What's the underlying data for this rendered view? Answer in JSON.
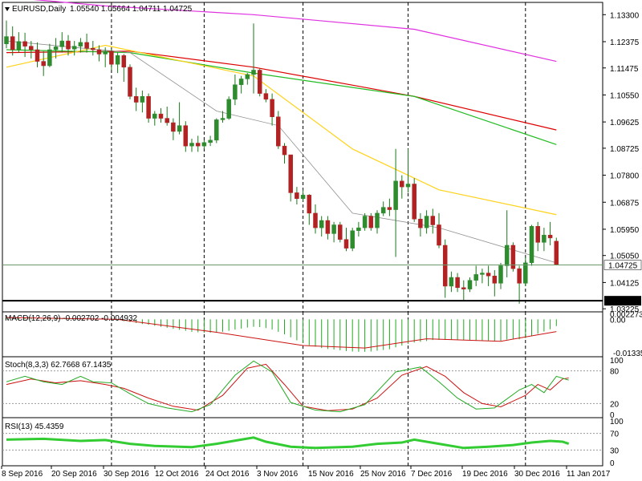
{
  "header": {
    "symbol_timeframe": "EURUSD,Daily",
    "ohlc": "1.05540 1.05664 1.04711 1.04725"
  },
  "colors": {
    "bull": "#2e8b2e",
    "bear": "#b22222",
    "wick": "#1a7a1a",
    "ma_magenta": "#e030e0",
    "ma_red": "#dd0000",
    "ma_green": "#22bb22",
    "ma_yellow": "#ffd21a",
    "ma_gray": "#909090",
    "macd_hist": "#22aa22",
    "macd_signal": "#cc1111",
    "stoch_main": "#22aa22",
    "stoch_signal": "#cc1111",
    "rsi": "#33cc33",
    "price_label_bg": "#000000",
    "price_label_text": "#ffffff"
  },
  "chart_data": [
    {
      "type": "candlestick",
      "title": "EURUSD,Daily",
      "ohlc_text": "1.05540 1.05664 1.04711 1.04725",
      "ylim": [
        1.0312,
        1.1372
      ],
      "y_ticks": [
        "1.13300",
        "1.12375",
        "1.11475",
        "1.10550",
        "1.09625",
        "1.08725",
        "1.07800",
        "1.06875",
        "1.05950",
        "1.05050",
        "1.04125",
        "1.03225"
      ],
      "x_ticks": [
        "8 Sep 2016",
        "20 Sep 2016",
        "30 Sep 2016",
        "12 Oct 2016",
        "24 Oct 2016",
        "3 Nov 2016",
        "15 Nov 2016",
        "25 Nov 2016",
        "7 Dec 2016",
        "19 Dec 2016",
        "30 Dec 2016",
        "11 Jan 2017"
      ],
      "current_price": "1.04725",
      "level_line": "1.03500",
      "candles": [
        [
          1.123,
          1.131,
          1.1215,
          1.1255
        ],
        [
          1.1255,
          1.129,
          1.119,
          1.121
        ],
        [
          1.121,
          1.127,
          1.12,
          1.1238
        ],
        [
          1.1238,
          1.1268,
          1.1185,
          1.1222
        ],
        [
          1.1222,
          1.124,
          1.118,
          1.121
        ],
        [
          1.121,
          1.1235,
          1.115,
          1.117
        ],
        [
          1.117,
          1.1205,
          1.112,
          1.1155
        ],
        [
          1.1155,
          1.123,
          1.115,
          1.121
        ],
        [
          1.121,
          1.125,
          1.118,
          1.122
        ],
        [
          1.122,
          1.127,
          1.12,
          1.124
        ],
        [
          1.124,
          1.126,
          1.119,
          1.1212
        ],
        [
          1.1212,
          1.124,
          1.119,
          1.1222
        ],
        [
          1.1222,
          1.125,
          1.12,
          1.1235
        ],
        [
          1.1235,
          1.1265,
          1.12,
          1.1215
        ],
        [
          1.1215,
          1.124,
          1.119,
          1.121
        ],
        [
          1.121,
          1.1225,
          1.117,
          1.1195
        ],
        [
          1.1195,
          1.1218,
          1.115,
          1.1205
        ],
        [
          1.1205,
          1.1212,
          1.114,
          1.116
        ],
        [
          1.116,
          1.12,
          1.113,
          1.119
        ],
        [
          1.119,
          1.1195,
          1.11,
          1.115
        ],
        [
          1.115,
          1.116,
          1.104,
          1.105
        ],
        [
          1.105,
          1.108,
          1.1,
          1.103
        ],
        [
          1.103,
          1.107,
          1.0995,
          1.105
        ],
        [
          1.105,
          1.106,
          1.096,
          1.0975
        ],
        [
          1.0975,
          1.1,
          1.095,
          1.099
        ],
        [
          1.099,
          1.101,
          1.096,
          1.0975
        ],
        [
          1.0975,
          1.1015,
          1.095,
          1.096
        ],
        [
          1.096,
          1.0975,
          1.09,
          1.093
        ],
        [
          1.093,
          1.103,
          1.092,
          1.095
        ],
        [
          1.095,
          1.0965,
          1.086,
          1.088
        ],
        [
          1.088,
          1.0905,
          1.086,
          1.089
        ],
        [
          1.089,
          1.0915,
          1.086,
          1.088
        ],
        [
          1.088,
          1.09,
          1.087,
          1.0892
        ],
        [
          1.0892,
          1.0915,
          1.088,
          1.09
        ],
        [
          1.09,
          1.0975,
          1.089,
          1.097
        ],
        [
          1.097,
          1.1,
          1.096,
          1.0975
        ],
        [
          1.0975,
          1.105,
          1.097,
          1.104
        ],
        [
          1.104,
          1.1125,
          1.102,
          1.109
        ],
        [
          1.109,
          1.112,
          1.106,
          1.111
        ],
        [
          1.111,
          1.113,
          1.109,
          1.1125
        ],
        [
          1.1125,
          1.13,
          1.106,
          1.114
        ],
        [
          1.114,
          1.1145,
          1.105,
          1.106
        ],
        [
          1.106,
          1.1075,
          1.103,
          1.104
        ],
        [
          1.104,
          1.106,
          1.095,
          1.098
        ],
        [
          1.098,
          1.1,
          1.087,
          1.088
        ],
        [
          1.088,
          1.089,
          1.082,
          1.085
        ],
        [
          1.085,
          1.085,
          1.069,
          1.072
        ],
        [
          1.072,
          1.074,
          1.068,
          1.07
        ],
        [
          1.07,
          1.073,
          1.069,
          1.0712
        ],
        [
          1.0712,
          1.0715,
          1.061,
          1.065
        ],
        [
          1.065,
          1.068,
          1.058,
          1.06
        ],
        [
          1.06,
          1.064,
          1.057,
          1.0625
        ],
        [
          1.0625,
          1.064,
          1.056,
          1.058
        ],
        [
          1.058,
          1.062,
          1.055,
          1.061
        ],
        [
          1.061,
          1.062,
          1.055,
          1.056
        ],
        [
          1.056,
          1.06,
          1.052,
          1.053
        ],
        [
          1.053,
          1.06,
          1.052,
          1.059
        ],
        [
          1.059,
          1.062,
          1.057,
          1.06
        ],
        [
          1.06,
          1.065,
          1.059,
          1.064
        ],
        [
          1.064,
          1.065,
          1.059,
          1.06
        ],
        [
          1.06,
          1.066,
          1.058,
          1.065
        ],
        [
          1.065,
          1.069,
          1.064,
          1.067
        ],
        [
          1.067,
          1.07,
          1.064,
          1.0662
        ],
        [
          1.0662,
          1.087,
          1.05,
          1.076
        ],
        [
          1.076,
          1.078,
          1.07,
          1.074
        ],
        [
          1.074,
          1.087,
          1.072,
          1.075
        ],
        [
          1.075,
          1.077,
          1.062,
          1.063
        ],
        [
          1.063,
          1.065,
          1.057,
          1.06
        ],
        [
          1.06,
          1.066,
          1.058,
          1.064
        ],
        [
          1.064,
          1.0665,
          1.058,
          1.061
        ],
        [
          1.061,
          1.065,
          1.053,
          1.054
        ],
        [
          1.054,
          1.056,
          1.036,
          1.04
        ],
        [
          1.04,
          1.045,
          1.038,
          1.043
        ],
        [
          1.043,
          1.0445,
          1.038,
          1.0395
        ],
        [
          1.0395,
          1.042,
          1.035,
          1.039
        ],
        [
          1.039,
          1.043,
          1.038,
          1.042
        ],
        [
          1.042,
          1.047,
          1.04,
          1.044
        ],
        [
          1.044,
          1.046,
          1.041,
          1.0445
        ],
        [
          1.0445,
          1.047,
          1.04,
          1.0435
        ],
        [
          1.0435,
          1.0455,
          1.0365,
          1.041
        ],
        [
          1.041,
          1.048,
          1.039,
          1.047
        ],
        [
          1.047,
          1.066,
          1.043,
          1.054
        ],
        [
          1.054,
          1.055,
          1.045,
          1.046
        ],
        [
          1.046,
          1.047,
          1.034,
          1.041
        ],
        [
          1.041,
          1.05,
          1.04,
          1.048
        ],
        [
          1.048,
          1.061,
          1.047,
          1.0605
        ],
        [
          1.0605,
          1.062,
          1.052,
          1.055
        ],
        [
          1.055,
          1.06,
          1.052,
          1.0575
        ],
        [
          1.0575,
          1.062,
          1.054,
          1.0565
        ],
        [
          1.0554,
          1.0566,
          1.0471,
          1.0473
        ]
      ],
      "moving_averages": [
        {
          "points": [
            [
              0,
              1.139
            ],
            [
              16,
              1.136
            ],
            [
              40,
              1.133
            ],
            [
              66,
              1.128
            ],
            [
              89,
              1.117
            ]
          ]
        },
        {
          "points": [
            [
              0,
              1.12
            ],
            [
              20,
              1.1205
            ],
            [
              40,
              1.115
            ],
            [
              66,
              1.105
            ],
            [
              89,
              1.0935
            ]
          ]
        },
        {
          "points": [
            [
              0,
              1.121
            ],
            [
              20,
              1.12
            ],
            [
              40,
              1.113
            ],
            [
              66,
              1.105
            ],
            [
              89,
              1.0885
            ]
          ]
        },
        {
          "points": [
            [
              0,
              1.115
            ],
            [
              16,
              1.1225
            ],
            [
              40,
              1.112
            ],
            [
              56,
              1.087
            ],
            [
              70,
              1.073
            ],
            [
              89,
              1.0645
            ]
          ]
        },
        {
          "points": [
            [
              0,
              1.124
            ],
            [
              20,
              1.12
            ],
            [
              34,
              1.1
            ],
            [
              44,
              1.095
            ],
            [
              56,
              1.065
            ],
            [
              70,
              1.06
            ],
            [
              89,
              1.048
            ]
          ]
        }
      ]
    },
    {
      "type": "bar",
      "title": "MACD(12,26,9) -0.002702 -0.004932",
      "y_ticks": [
        "0.002273",
        "0.00",
        "-0.013358"
      ],
      "ylim": [
        -0.015,
        0.003
      ],
      "histogram": [
        0.0005,
        0.0006,
        0.0006,
        0.0005,
        0.0005,
        0.0004,
        0.0003,
        0.0003,
        0.0003,
        0.0003,
        0.0003,
        0.0002,
        0.0002,
        0.0001,
        0.0,
        -0.0001,
        -0.0002,
        -0.0003,
        -0.0005,
        -0.0008,
        -0.0011,
        -0.0015,
        -0.0019,
        -0.0022,
        -0.0026,
        -0.003,
        -0.0034,
        -0.0038,
        -0.0042,
        -0.0046,
        -0.005,
        -0.0052,
        -0.0054,
        -0.0054,
        -0.0053,
        -0.005,
        -0.0046,
        -0.0041,
        -0.0037,
        -0.0033,
        -0.003,
        -0.0031,
        -0.0035,
        -0.0041,
        -0.005,
        -0.006,
        -0.0072,
        -0.0084,
        -0.0095,
        -0.0104,
        -0.011,
        -0.0115,
        -0.0119,
        -0.0121,
        -0.0124,
        -0.0127,
        -0.0129,
        -0.013,
        -0.013,
        -0.0129,
        -0.0126,
        -0.0123,
        -0.012,
        -0.0112,
        -0.0105,
        -0.0098,
        -0.0093,
        -0.009,
        -0.0087,
        -0.0083,
        -0.0082,
        -0.0082,
        -0.0082,
        -0.0082,
        -0.0083,
        -0.0085,
        -0.0086,
        -0.0086,
        -0.0087,
        -0.0088,
        -0.0086,
        -0.0081,
        -0.008,
        -0.008,
        -0.0075,
        -0.0065,
        -0.0058,
        -0.0049,
        -0.004,
        -0.0027
      ],
      "signal": [
        [
          0,
          0.0007
        ],
        [
          18,
          0.0
        ],
        [
          34,
          -0.0052
        ],
        [
          48,
          -0.0105
        ],
        [
          58,
          -0.0115
        ],
        [
          68,
          -0.0078
        ],
        [
          80,
          -0.0088
        ],
        [
          89,
          -0.0049
        ]
      ]
    },
    {
      "type": "line",
      "title": "Stoch(8,3,3) 62.7668 67.1435",
      "y_ticks": [
        "100",
        "80",
        "20",
        "0"
      ],
      "ylim": [
        0,
        100
      ],
      "series": [
        {
          "points": [
            [
              0,
              60
            ],
            [
              3,
              70
            ],
            [
              6,
              60
            ],
            [
              9,
              55
            ],
            [
              12,
              70
            ],
            [
              14,
              60
            ],
            [
              17,
              58
            ],
            [
              20,
              38
            ],
            [
              23,
              20
            ],
            [
              26,
              12
            ],
            [
              30,
              5
            ],
            [
              33,
              18
            ],
            [
              37,
              72
            ],
            [
              40,
              98
            ],
            [
              43,
              78
            ],
            [
              46,
              22
            ],
            [
              50,
              8
            ],
            [
              54,
              5
            ],
            [
              58,
              18
            ],
            [
              63,
              78
            ],
            [
              67,
              87
            ],
            [
              70,
              60
            ],
            [
              73,
              30
            ],
            [
              76,
              10
            ],
            [
              79,
              12
            ],
            [
              83,
              45
            ],
            [
              85,
              55
            ],
            [
              87,
              40
            ],
            [
              89,
              70
            ],
            [
              91,
              63
            ]
          ]
        },
        {
          "points": [
            [
              0,
              55
            ],
            [
              4,
              65
            ],
            [
              8,
              58
            ],
            [
              12,
              62
            ],
            [
              16,
              55
            ],
            [
              19,
              48
            ],
            [
              23,
              30
            ],
            [
              27,
              15
            ],
            [
              31,
              8
            ],
            [
              35,
              35
            ],
            [
              39,
              85
            ],
            [
              42,
              92
            ],
            [
              45,
              55
            ],
            [
              48,
              15
            ],
            [
              52,
              7
            ],
            [
              56,
              10
            ],
            [
              60,
              30
            ],
            [
              64,
              72
            ],
            [
              68,
              88
            ],
            [
              71,
              70
            ],
            [
              74,
              40
            ],
            [
              77,
              20
            ],
            [
              80,
              14
            ],
            [
              84,
              35
            ],
            [
              86,
              55
            ],
            [
              88,
              45
            ],
            [
              90,
              65
            ],
            [
              91,
              67
            ]
          ]
        }
      ]
    },
    {
      "type": "line",
      "title": "RSI(13) 45.4359",
      "y_ticks": [
        "100",
        "70",
        "30",
        "0"
      ],
      "ylim": [
        0,
        100
      ],
      "series": [
        {
          "points": [
            [
              0,
              55
            ],
            [
              6,
              57
            ],
            [
              12,
              52
            ],
            [
              16,
              54
            ],
            [
              20,
              45
            ],
            [
              24,
              40
            ],
            [
              30,
              37
            ],
            [
              34,
              45
            ],
            [
              38,
              55
            ],
            [
              40,
              60
            ],
            [
              42,
              50
            ],
            [
              46,
              38
            ],
            [
              50,
              35
            ],
            [
              56,
              38
            ],
            [
              60,
              45
            ],
            [
              64,
              48
            ],
            [
              66,
              55
            ],
            [
              70,
              45
            ],
            [
              74,
              35
            ],
            [
              78,
              38
            ],
            [
              82,
              42
            ],
            [
              85,
              48
            ],
            [
              88,
              52
            ],
            [
              90,
              50
            ],
            [
              91,
              45
            ]
          ]
        }
      ]
    }
  ]
}
